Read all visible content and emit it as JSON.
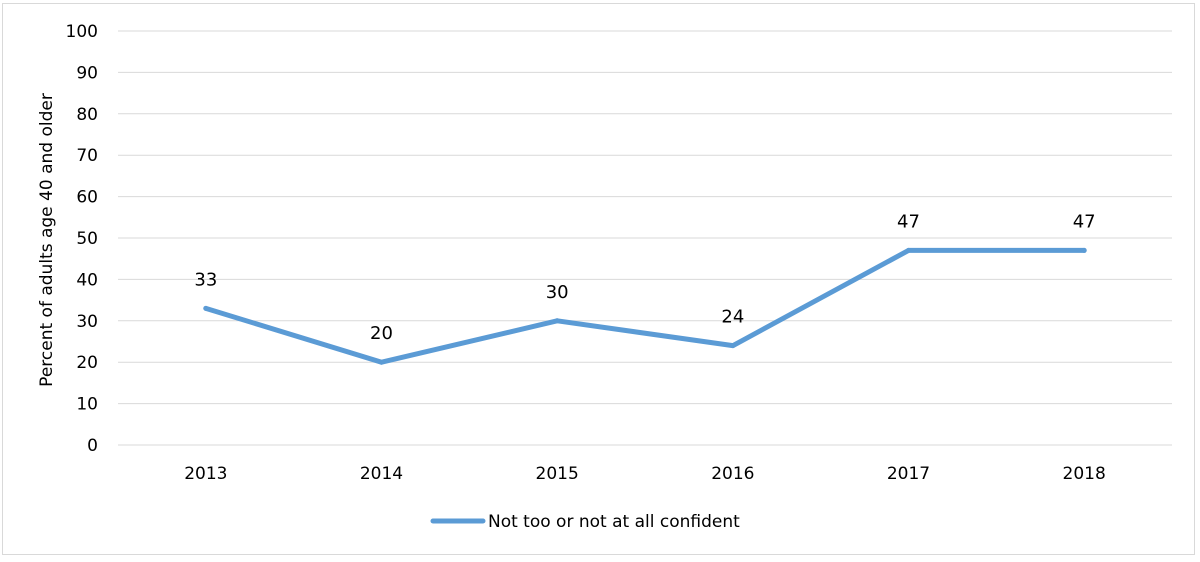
{
  "chart_data": {
    "type": "line",
    "title": "",
    "xlabel": "",
    "ylabel": "Percent of adults age 40 and older",
    "ylim": [
      0,
      100
    ],
    "yticks": [
      0,
      10,
      20,
      30,
      40,
      50,
      60,
      70,
      80,
      90,
      100
    ],
    "grid": true,
    "legend_position": "bottom",
    "categories": [
      "2013",
      "2014",
      "2015",
      "2016",
      "2017",
      "2018"
    ],
    "series": [
      {
        "name": "Not too or not at all confident",
        "color": "#5b9bd5",
        "values": [
          33,
          20,
          30,
          24,
          47,
          47
        ],
        "data_labels": [
          "33",
          "20",
          "30",
          "24",
          "47",
          "47"
        ]
      }
    ]
  }
}
